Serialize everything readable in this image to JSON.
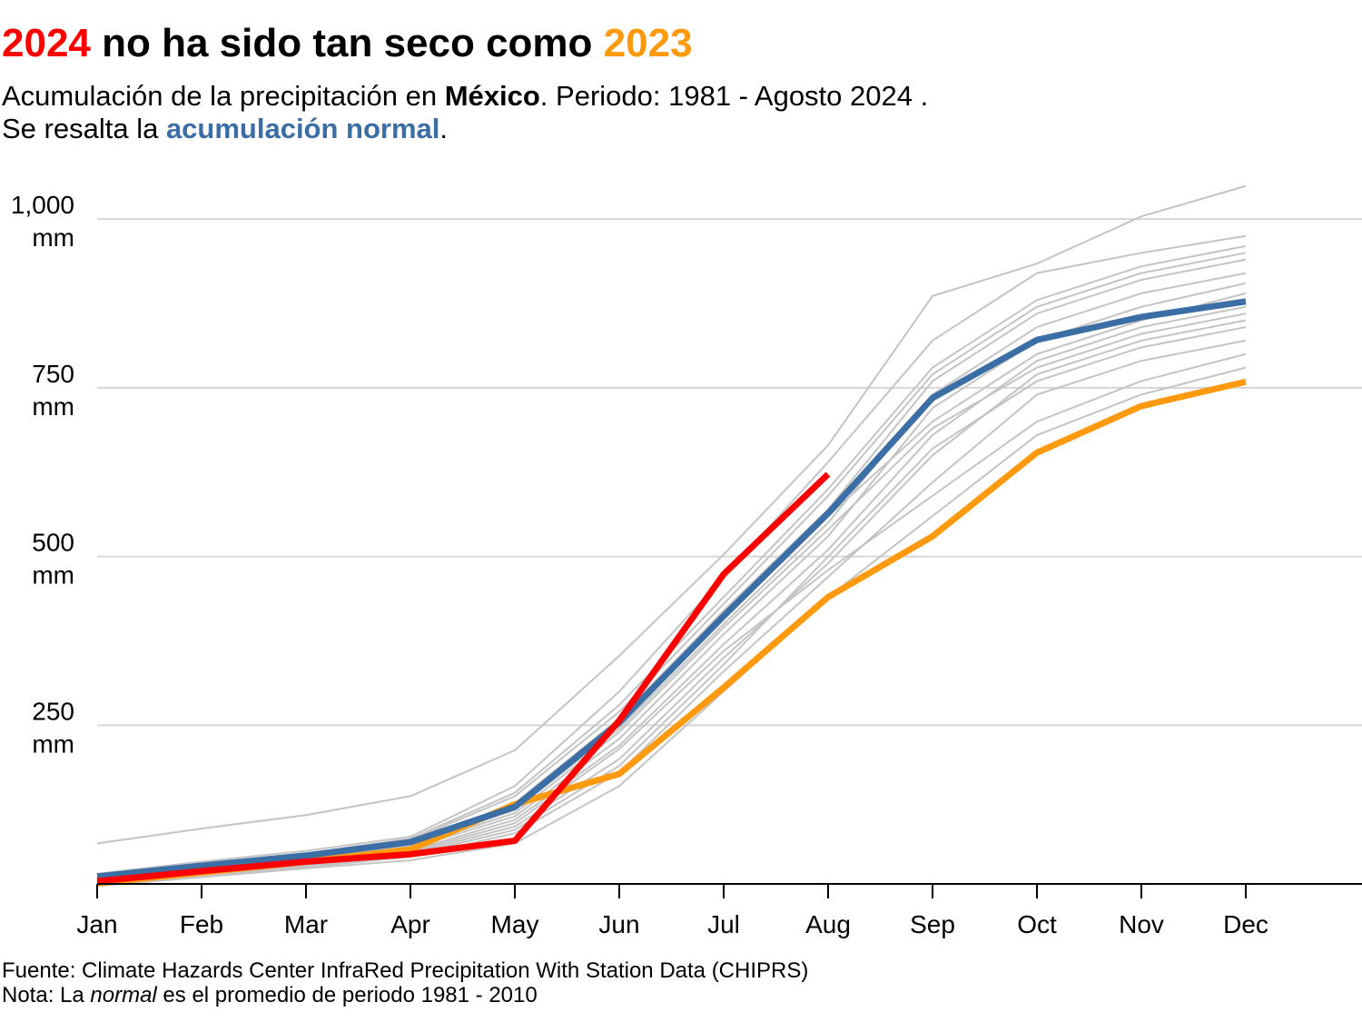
{
  "chart_data": {
    "type": "line",
    "title_parts": [
      "2024",
      " no ha sido tan seco como ",
      "2023"
    ],
    "title_colors": [
      "#ff0000",
      "#000000",
      "#ff9a0e"
    ],
    "subtitle_line1": [
      "Acumulación de la precipitación en ",
      "México",
      ". Periodo: 1981 - Agosto 2024 ."
    ],
    "subtitle_line2": [
      "Se resalta la ",
      "acumulación normal",
      "."
    ],
    "source": "Fuente: Climate Hazards Center InfraRed Precipitation With Station Data (CHIPRS)",
    "note_parts": [
      "Nota: La ",
      "normal",
      " es el promedio de periodo 1981 - 2010"
    ],
    "categories": [
      "Jan",
      "Feb",
      "Mar",
      "Apr",
      "May",
      "Jun",
      "Jul",
      "Aug",
      "Sep",
      "Oct",
      "Nov",
      "Dec"
    ],
    "ylim": [
      15,
      1060
    ],
    "yticks": [
      {
        "value": 250,
        "label": "250 mm"
      },
      {
        "value": 500,
        "label": "500 mm"
      },
      {
        "value": 750,
        "label": "750 mm"
      },
      {
        "value": 1000,
        "label": "1,000 mm"
      }
    ],
    "grid": true,
    "series": [
      {
        "color": "#c4c4c4",
        "values": [
          75,
          97,
          117,
          145,
          213,
          353,
          503,
          665,
          886,
          934,
          1004,
          1049
        ]
      },
      {
        "color": "#c4c4c4",
        "values": [
          30,
          48,
          64,
          85,
          160,
          300,
          470,
          640,
          820,
          920,
          950,
          975
        ]
      },
      {
        "color": "#c4c4c4",
        "values": [
          28,
          45,
          60,
          82,
          150,
          280,
          440,
          600,
          780,
          880,
          930,
          960
        ]
      },
      {
        "color": "#c4c4c4",
        "values": [
          25,
          40,
          55,
          75,
          135,
          260,
          420,
          570,
          760,
          860,
          910,
          940
        ]
      },
      {
        "color": "#c4c4c4",
        "values": [
          22,
          38,
          52,
          72,
          125,
          245,
          400,
          550,
          740,
          840,
          890,
          920
        ]
      },
      {
        "color": "#c4c4c4",
        "values": [
          20,
          35,
          50,
          68,
          115,
          230,
          385,
          530,
          720,
          820,
          870,
          905
        ]
      },
      {
        "color": "#c4c4c4",
        "values": [
          24,
          41,
          56,
          76,
          130,
          250,
          410,
          560,
          700,
          800,
          850,
          890
        ]
      },
      {
        "color": "#c4c4c4",
        "values": [
          18,
          32,
          46,
          64,
          110,
          220,
          370,
          510,
          680,
          790,
          840,
          870
        ]
      },
      {
        "color": "#c4c4c4",
        "values": [
          20,
          36,
          50,
          70,
          120,
          240,
          395,
          540,
          690,
          780,
          830,
          860
        ]
      },
      {
        "color": "#c4c4c4",
        "values": [
          16,
          30,
          44,
          60,
          100,
          200,
          350,
          490,
          650,
          770,
          820,
          850
        ]
      },
      {
        "color": "#c4c4c4",
        "values": [
          14,
          28,
          40,
          55,
          90,
          180,
          330,
          470,
          610,
          740,
          790,
          820
        ]
      },
      {
        "color": "#c4c4c4",
        "values": [
          17,
          31,
          45,
          62,
          105,
          215,
          360,
          480,
          590,
          700,
          760,
          800
        ]
      },
      {
        "color": "#c4c4c4",
        "values": [
          15,
          29,
          42,
          58,
          95,
          190,
          340,
          500,
          660,
          760,
          810,
          840
        ]
      },
      {
        "color": "#c4c4c4",
        "values": [
          12,
          25,
          38,
          50,
          75,
          160,
          300,
          440,
          560,
          680,
          740,
          780
        ]
      },
      {
        "color": "#c4c4c4",
        "values": [
          26,
          44,
          58,
          80,
          145,
          270,
          430,
          590,
          770,
          870,
          920,
          950
        ]
      },
      {
        "color": "#ff9a0e",
        "values": [
          16,
          32,
          48,
          66,
          133,
          178,
          306,
          440,
          530,
          654,
          723,
          759
        ]
      },
      {
        "color": "#3a6ea5",
        "values": [
          26,
          42,
          57,
          77,
          129,
          254,
          412,
          564,
          735,
          821,
          855,
          878
        ]
      },
      {
        "color": "#ff0000",
        "values": [
          19,
          34,
          48,
          59,
          79,
          257,
          474,
          622,
          null,
          null,
          null,
          null
        ]
      }
    ]
  }
}
